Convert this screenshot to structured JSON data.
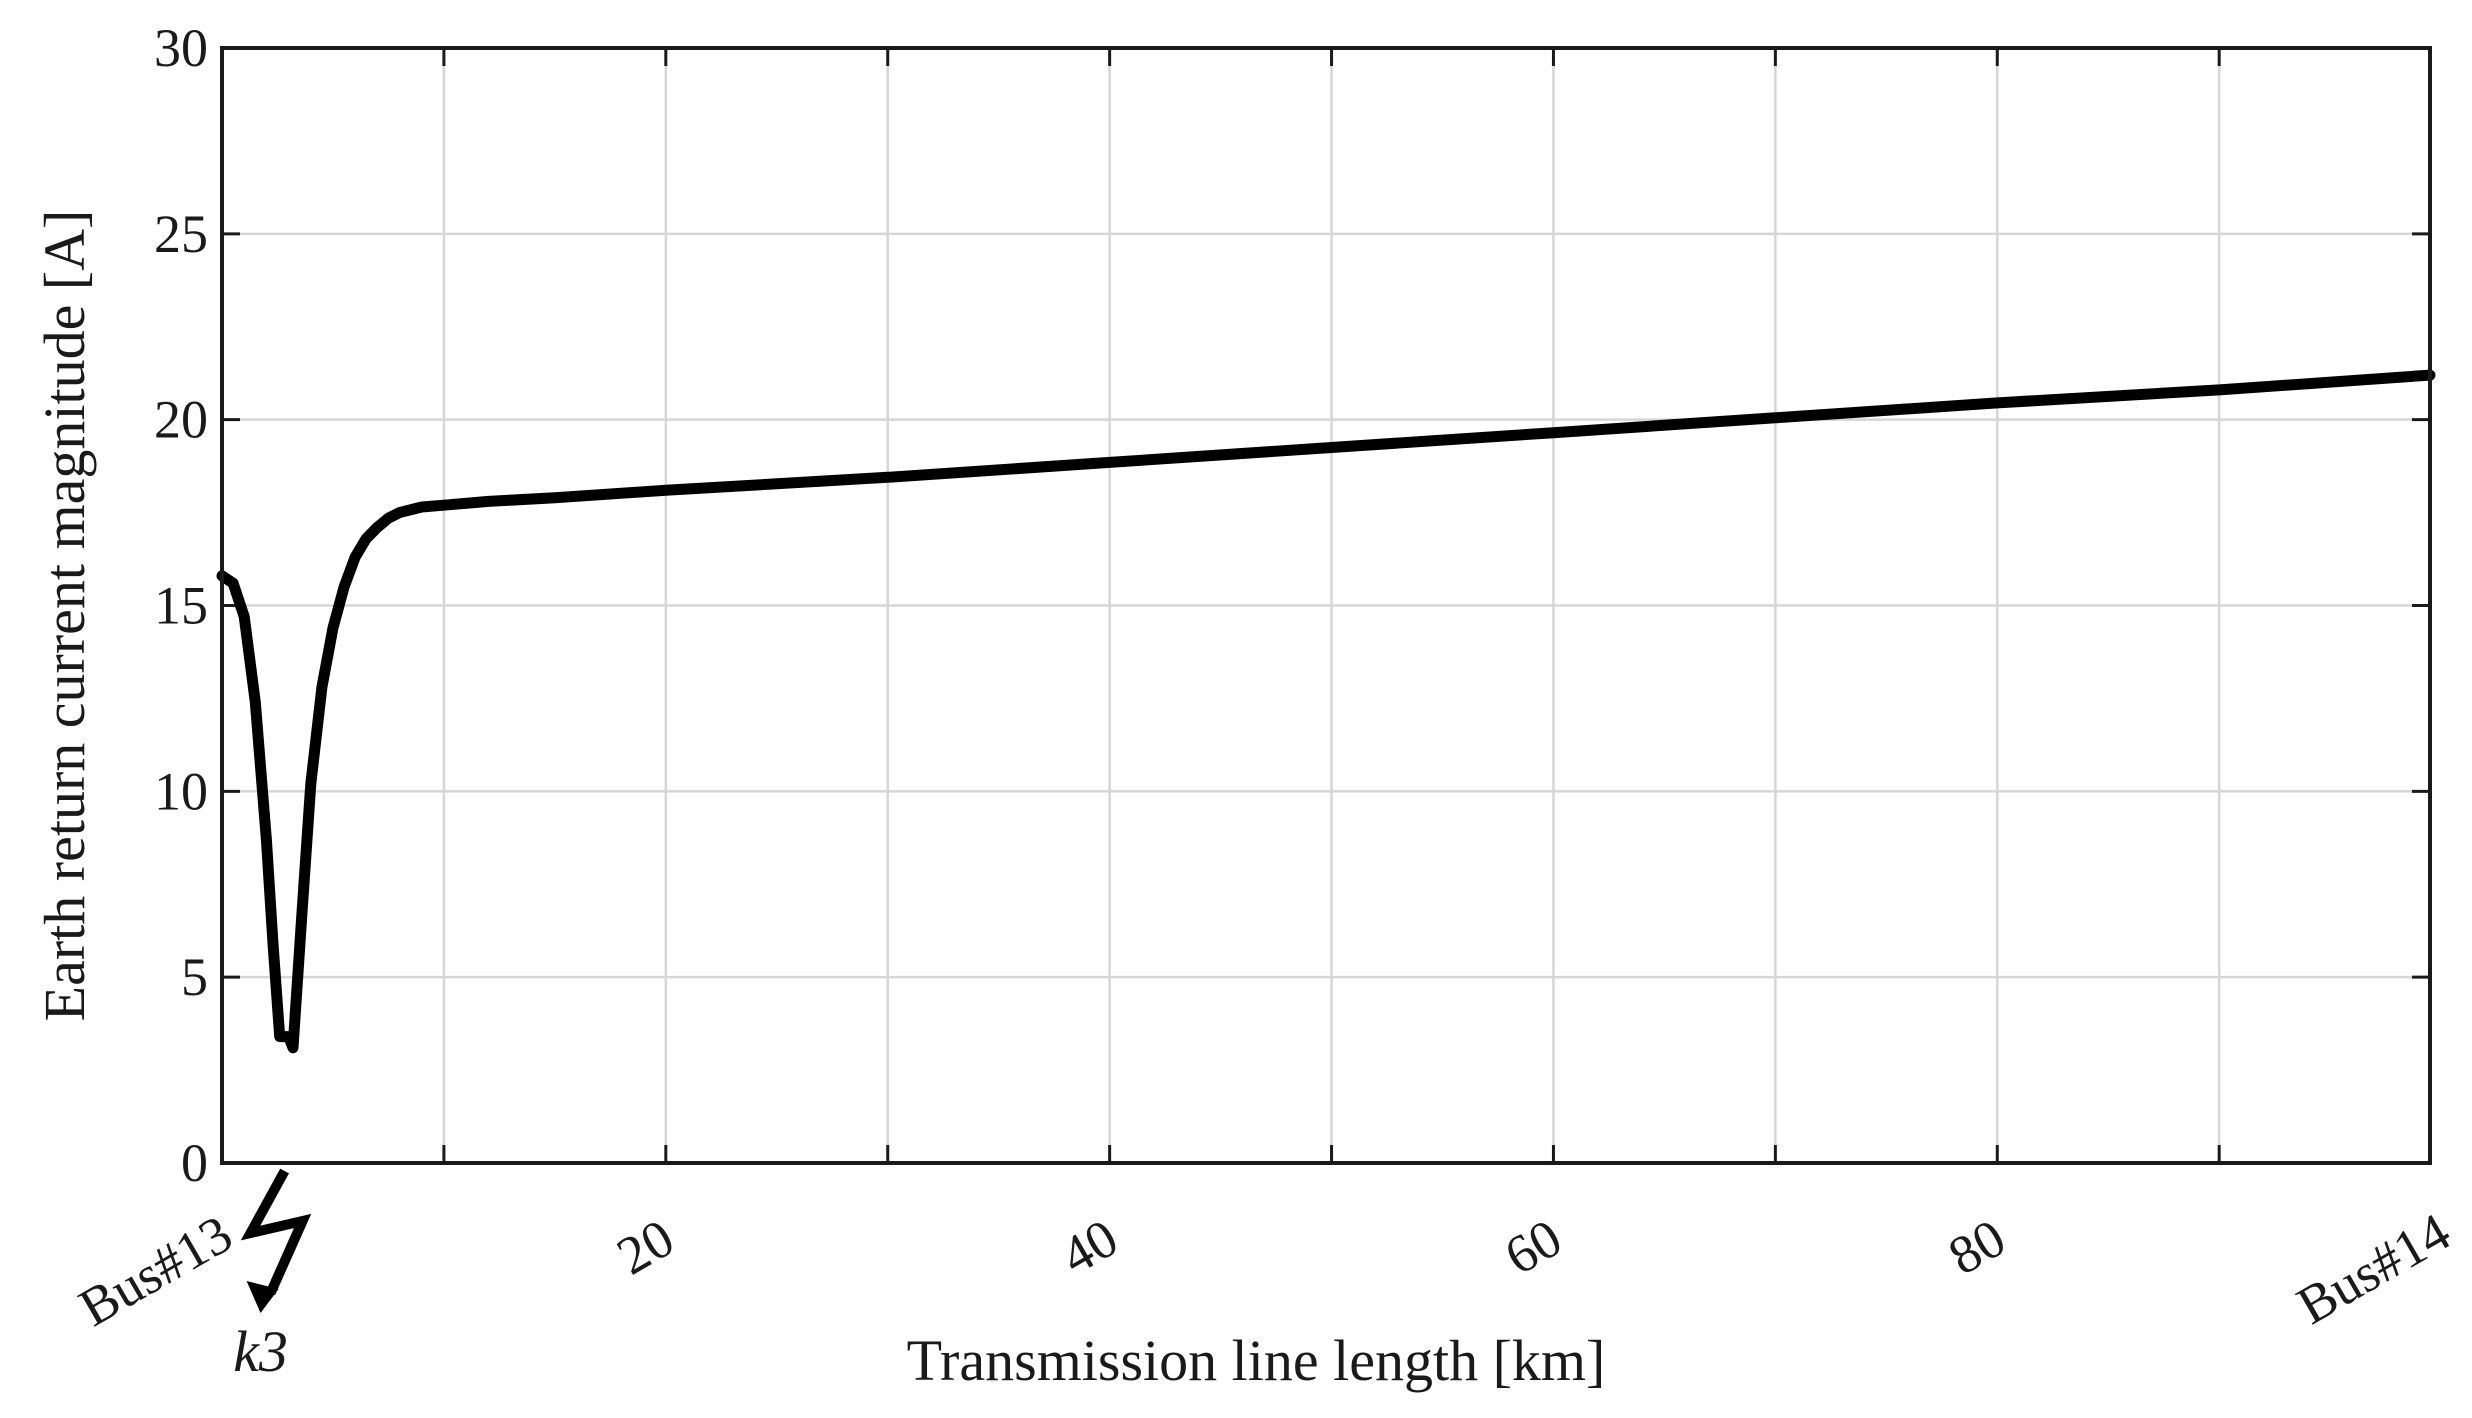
{
  "chart_data": {
    "type": "line",
    "xlabel": "Transmission line length [km]",
    "ylabel": "Earth return current magnitude [A]",
    "xlim": [
      0,
      99.5
    ],
    "ylim": [
      0,
      30
    ],
    "grid": true,
    "x_ticks": [
      {
        "value": 0,
        "label": "Bus#13"
      },
      {
        "value": 20,
        "label": "20"
      },
      {
        "value": 40,
        "label": "40"
      },
      {
        "value": 60,
        "label": "60"
      },
      {
        "value": 80,
        "label": "80"
      },
      {
        "value": 99.5,
        "label": "Bus#14"
      }
    ],
    "y_ticks": [
      0,
      5,
      10,
      15,
      20,
      25,
      30
    ],
    "fault_marker": {
      "label": "k3",
      "x": 3.0
    },
    "series": [
      {
        "color": "#000000",
        "x": [
          0,
          0.5,
          1.0,
          1.5,
          2.0,
          2.3,
          2.6,
          3.0,
          3.2,
          3.6,
          4.0,
          4.5,
          5.0,
          5.5,
          6.0,
          6.5,
          7.0,
          7.5,
          8.0,
          9.0,
          10.0,
          12.0,
          15.0,
          20.0,
          30.0,
          40.0,
          50.0,
          60.0,
          70.0,
          80.0,
          90.0,
          99.5
        ],
        "y": [
          15.8,
          15.6,
          14.7,
          12.4,
          8.7,
          5.9,
          3.4,
          3.4,
          3.1,
          6.7,
          10.2,
          12.8,
          14.4,
          15.5,
          16.3,
          16.8,
          17.1,
          17.35,
          17.5,
          17.65,
          17.7,
          17.8,
          17.9,
          18.1,
          18.45,
          18.85,
          19.25,
          19.65,
          20.05,
          20.45,
          20.8,
          21.2
        ]
      }
    ]
  }
}
